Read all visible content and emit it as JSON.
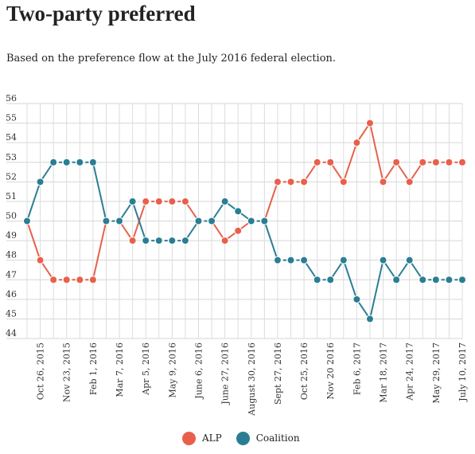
{
  "chart_data": {
    "type": "line",
    "title": "Two-party preferred",
    "subtitle": "Based on the preference flow at the July 2016 federal election.",
    "x_labels": [
      "",
      "Oct 26, 2015",
      "",
      "Nov 23, 2015",
      "",
      "Feb 1, 2016",
      "",
      "Mar 7, 2016",
      "",
      "Apr 5, 2016",
      "",
      "May 9, 2016",
      "",
      "June 6, 2016",
      "",
      "June 27, 2016",
      "",
      "August 30, 2016",
      "",
      "Sept 27, 2016",
      "",
      "Oct 25, 2016",
      "",
      "Nov 20 2016",
      "",
      "Feb 6, 2017",
      "",
      "Mar 18, 2017",
      "",
      "Apr 24, 2017",
      "",
      "May 29, 2017",
      "",
      "July 10, 2017"
    ],
    "ylim": [
      44,
      56
    ],
    "y_ticks": [
      44,
      45,
      46,
      47,
      48,
      49,
      50,
      51,
      52,
      53,
      54,
      55,
      56
    ],
    "grid": true,
    "legend_position": "bottom",
    "series": [
      {
        "name": "ALP",
        "color": "#e8604c",
        "values": [
          50,
          48,
          47,
          47,
          47,
          47,
          50,
          50,
          49,
          51,
          51,
          51,
          51,
          50,
          50,
          49,
          49.5,
          50,
          50,
          52,
          52,
          52,
          53,
          53,
          52,
          54,
          55,
          52,
          53,
          52,
          53,
          53,
          53,
          53
        ]
      },
      {
        "name": "Coalition",
        "color": "#2a7e93",
        "values": [
          50,
          52,
          53,
          53,
          53,
          53,
          50,
          50,
          51,
          49,
          49,
          49,
          49,
          50,
          50,
          51,
          50.5,
          50,
          50,
          48,
          48,
          48,
          47,
          47,
          48,
          46,
          45,
          48,
          47,
          48,
          47,
          47,
          47,
          47
        ]
      }
    ]
  }
}
